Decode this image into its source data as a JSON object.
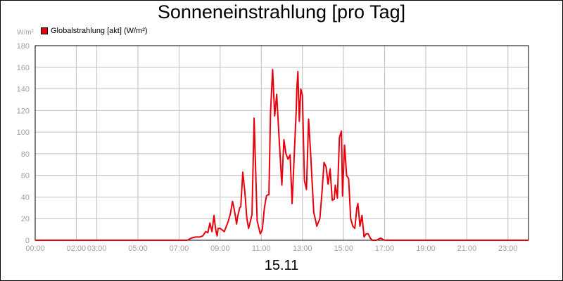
{
  "header": {
    "title": "Sonneneinstrahlung [pro Tag]",
    "unit": "W/m²",
    "date": "15.11"
  },
  "colors": {
    "series": "#e8000d",
    "grid": "#c0c0c0",
    "tick_text": "#a0a0a0"
  },
  "chart_data": {
    "type": "line",
    "title": "Sonneneinstrahlung [pro Tag]",
    "subtitle": "15.11",
    "ylabel": "W/m²",
    "xlabel": "",
    "ylim": [
      0,
      180
    ],
    "xlim": [
      0,
      24
    ],
    "grid": true,
    "legend_position": "top-left",
    "y_ticks": [
      "0",
      "20",
      "40",
      "60",
      "80",
      "100",
      "120",
      "140",
      "160",
      "180"
    ],
    "x_ticks": [
      {
        "x": 0,
        "label": "00:00"
      },
      {
        "x": 2,
        "label": "02:00"
      },
      {
        "x": 3,
        "label": "03:00"
      },
      {
        "x": 5,
        "label": "05:00"
      },
      {
        "x": 7,
        "label": "07:00"
      },
      {
        "x": 9,
        "label": "09:00"
      },
      {
        "x": 11,
        "label": "11:00"
      },
      {
        "x": 13,
        "label": "13:00"
      },
      {
        "x": 15,
        "label": "15:00"
      },
      {
        "x": 17,
        "label": "17:00"
      },
      {
        "x": 19,
        "label": "19:00"
      },
      {
        "x": 21,
        "label": "21:00"
      },
      {
        "x": 23,
        "label": "23:00"
      }
    ],
    "series": [
      {
        "name": "Globalstrahlung [akt] (W/m²)",
        "x": [
          0,
          7.4,
          7.6,
          7.8,
          8.0,
          8.15,
          8.3,
          8.4,
          8.5,
          8.6,
          8.7,
          8.78,
          8.85,
          8.9,
          9.0,
          9.2,
          9.4,
          9.5,
          9.6,
          9.7,
          9.8,
          9.85,
          9.95,
          10.0,
          10.1,
          10.2,
          10.3,
          10.38,
          10.45,
          10.55,
          10.65,
          10.8,
          10.95,
          11.05,
          11.15,
          11.25,
          11.3,
          11.37,
          11.45,
          11.55,
          11.65,
          11.75,
          11.85,
          12.0,
          12.1,
          12.2,
          12.3,
          12.4,
          12.5,
          12.6,
          12.7,
          12.73,
          12.78,
          12.85,
          12.92,
          13.0,
          13.1,
          13.2,
          13.3,
          13.4,
          13.55,
          13.7,
          13.85,
          13.95,
          14.05,
          14.15,
          14.25,
          14.35,
          14.45,
          14.55,
          14.6,
          14.7,
          14.8,
          14.9,
          14.95,
          15.05,
          15.15,
          15.25,
          15.35,
          15.45,
          15.55,
          15.65,
          15.7,
          15.8,
          15.9,
          16.0,
          16.1,
          16.2,
          16.3,
          16.4,
          16.6,
          16.8,
          17.0,
          24
        ],
        "y": [
          0,
          0,
          2,
          3,
          3,
          4,
          8,
          7,
          16,
          8,
          23,
          10,
          4,
          11,
          11,
          8,
          18,
          25,
          36,
          27,
          15,
          22,
          30,
          31,
          63,
          45,
          20,
          11,
          16,
          24,
          113,
          18,
          6,
          10,
          30,
          41,
          42,
          42,
          118,
          158,
          115,
          135,
          100,
          51,
          93,
          80,
          75,
          79,
          34,
          77,
          120,
          140,
          156,
          110,
          140,
          134,
          55,
          47,
          112,
          80,
          26,
          13,
          20,
          44,
          72,
          68,
          52,
          66,
          37,
          38,
          51,
          39,
          95,
          101,
          41,
          88,
          60,
          57,
          20,
          13,
          11,
          30,
          34,
          13,
          23,
          3,
          6,
          6,
          2,
          0,
          0,
          2,
          0,
          0
        ]
      }
    ]
  }
}
